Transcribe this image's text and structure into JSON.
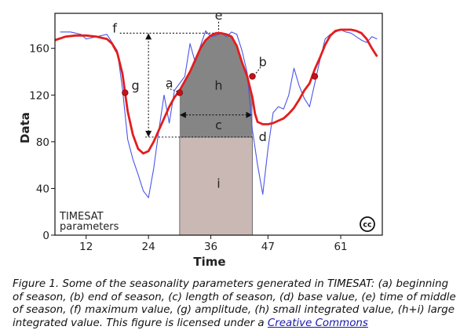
{
  "chart_data": {
    "type": "line",
    "xlabel": "Time",
    "ylabel": "Data",
    "xlim": [
      6,
      69
    ],
    "ylim": [
      0,
      190
    ],
    "x_ticks": [
      12,
      24,
      36,
      47,
      61
    ],
    "y_ticks": [
      0,
      40,
      80,
      120,
      160
    ],
    "series": [
      {
        "values": [
          [
            7,
            174
          ],
          [
            9,
            174
          ],
          [
            11,
            172
          ],
          [
            12,
            168
          ],
          [
            14,
            170
          ],
          [
            16,
            172
          ],
          [
            18,
            158
          ],
          [
            19,
            125
          ],
          [
            20,
            82
          ],
          [
            21,
            65
          ],
          [
            22,
            52
          ],
          [
            23,
            38
          ],
          [
            24,
            32
          ],
          [
            25,
            57
          ],
          [
            26,
            90
          ],
          [
            27,
            120
          ],
          [
            28,
            96
          ],
          [
            29,
            124
          ],
          [
            30,
            130
          ],
          [
            31,
            136
          ],
          [
            32,
            164
          ],
          [
            33,
            148
          ],
          [
            34,
            162
          ],
          [
            35,
            175
          ],
          [
            36,
            170
          ],
          [
            37,
            171
          ],
          [
            38,
            173
          ],
          [
            39,
            170
          ],
          [
            40,
            174
          ],
          [
            41,
            172
          ],
          [
            42,
            158
          ],
          [
            43,
            139
          ],
          [
            44,
            90
          ],
          [
            45,
            60
          ],
          [
            46,
            35
          ],
          [
            47,
            74
          ],
          [
            48,
            105
          ],
          [
            49,
            110
          ],
          [
            50,
            108
          ],
          [
            51,
            120
          ],
          [
            52,
            143
          ],
          [
            53,
            128
          ],
          [
            54,
            117
          ],
          [
            55,
            110
          ],
          [
            56,
            130
          ],
          [
            57,
            150
          ],
          [
            58,
            168
          ],
          [
            59,
            172
          ],
          [
            60,
            174
          ],
          [
            61,
            176
          ],
          [
            62,
            174
          ],
          [
            63,
            173
          ],
          [
            64,
            170
          ],
          [
            65,
            167
          ],
          [
            66,
            165
          ],
          [
            67,
            170
          ],
          [
            68,
            168
          ]
        ]
      },
      {
        "values": [
          [
            6,
            167
          ],
          [
            8,
            170
          ],
          [
            10,
            171
          ],
          [
            12,
            171
          ],
          [
            14,
            170
          ],
          [
            16,
            168
          ],
          [
            17,
            164
          ],
          [
            18,
            156
          ],
          [
            19,
            138
          ],
          [
            19.5,
            122
          ],
          [
            20,
            106
          ],
          [
            21,
            86
          ],
          [
            22,
            74
          ],
          [
            23,
            70
          ],
          [
            24,
            72
          ],
          [
            25,
            80
          ],
          [
            26,
            90
          ],
          [
            27,
            100
          ],
          [
            28,
            110
          ],
          [
            29,
            118
          ],
          [
            30,
            124
          ],
          [
            31,
            132
          ],
          [
            32,
            140
          ],
          [
            33,
            150
          ],
          [
            34,
            160
          ],
          [
            35,
            167
          ],
          [
            36,
            171
          ],
          [
            37,
            173
          ],
          [
            38,
            173
          ],
          [
            39,
            172
          ],
          [
            40,
            170
          ],
          [
            41,
            162
          ],
          [
            42,
            148
          ],
          [
            43,
            136
          ],
          [
            44,
            118
          ],
          [
            44.5,
            104
          ],
          [
            45,
            97
          ],
          [
            46,
            95
          ],
          [
            47,
            95
          ],
          [
            48,
            96
          ],
          [
            49,
            98
          ],
          [
            50,
            100
          ],
          [
            51,
            104
          ],
          [
            52,
            109
          ],
          [
            53,
            116
          ],
          [
            54,
            124
          ],
          [
            55,
            130
          ],
          [
            55.5,
            136
          ],
          [
            56,
            142
          ],
          [
            57,
            152
          ],
          [
            58,
            163
          ],
          [
            59,
            171
          ],
          [
            60,
            175
          ],
          [
            61,
            176
          ],
          [
            62,
            176
          ],
          [
            63,
            176
          ],
          [
            64,
            175
          ],
          [
            65,
            173
          ],
          [
            66,
            168
          ],
          [
            67,
            160
          ],
          [
            68,
            153
          ]
        ]
      }
    ],
    "season_markers": [
      [
        19.5,
        122
      ],
      [
        30,
        122
      ],
      [
        44,
        136
      ],
      [
        56,
        136
      ]
    ],
    "shaded_regions": [
      {
        "label": "h",
        "x_start": 30,
        "x_end": 44,
        "y_base": 84
      },
      {
        "label": "i",
        "x_start": 30,
        "x_end": 44,
        "y_base": 0
      }
    ],
    "annotations": [
      {
        "label": "a",
        "x": 28,
        "y": 130
      },
      {
        "label": "b",
        "x": 46,
        "y": 148
      },
      {
        "label": "c",
        "x": 37.5,
        "y": 94
      },
      {
        "label": "d",
        "x": 46,
        "y": 84
      },
      {
        "label": "e",
        "x": 37.5,
        "y": 188
      },
      {
        "label": "f",
        "x": 17.5,
        "y": 177
      },
      {
        "label": "g",
        "x": 21.5,
        "y": 128
      },
      {
        "label": "h",
        "x": 37.5,
        "y": 128
      },
      {
        "label": "i",
        "x": 37.5,
        "y": 44
      }
    ],
    "reference_lines": {
      "max_value": 173,
      "base_value": 84,
      "season_start_x": 30,
      "season_end_x": 44,
      "amplitude_x": 24
    },
    "inset_label": [
      "TIMESAT",
      "parameters"
    ],
    "badge_text": "cc",
    "colors": {
      "raw_data": "#4a56e8",
      "fitted": "#e31d1d",
      "markers": "#c4121b",
      "region_h": "#858585",
      "region_i": "#c9b8b4"
    }
  },
  "caption": {
    "text": "Figure 1. Some of the seasonality parameters generated in TIMESAT: (a) beginning of season, (b) end of season, (c) length of season, (d) base value, (e) time of middle of season, (f) maximum value, (g) amplitude, (h) small integrated value, (h+i) large integrated value. This figure is licensed under a ",
    "link_text": "Creative Commons"
  }
}
